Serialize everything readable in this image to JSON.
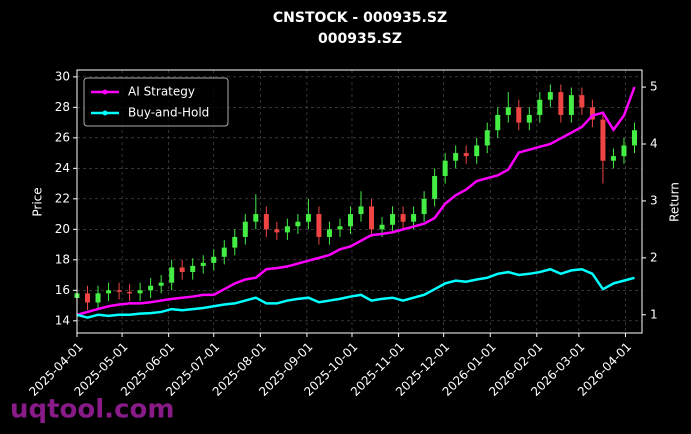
{
  "chart_data": {
    "type": "candlestick",
    "title": "CNSTOCK - 000935.SZ",
    "subtitle": "000935.SZ",
    "y_label": "Price",
    "y2_label": "Return",
    "watermark": "uqtool.com",
    "x": [
      "2025-04-01",
      "2025-04-08",
      "2025-04-15",
      "2025-04-22",
      "2025-04-29",
      "2025-05-06",
      "2025-05-13",
      "2025-05-20",
      "2025-05-27",
      "2025-06-03",
      "2025-06-10",
      "2025-06-17",
      "2025-06-24",
      "2025-07-01",
      "2025-07-08",
      "2025-07-15",
      "2025-07-22",
      "2025-07-29",
      "2025-08-05",
      "2025-08-12",
      "2025-08-19",
      "2025-08-26",
      "2025-09-02",
      "2025-09-09",
      "2025-09-16",
      "2025-09-23",
      "2025-09-30",
      "2025-10-07",
      "2025-10-14",
      "2025-10-21",
      "2025-10-28",
      "2025-11-04",
      "2025-11-11",
      "2025-11-18",
      "2025-11-25",
      "2025-12-02",
      "2025-12-09",
      "2025-12-16",
      "2025-12-23",
      "2025-12-30",
      "2026-01-06",
      "2026-01-13",
      "2026-01-20",
      "2026-01-27",
      "2026-02-03",
      "2026-02-10",
      "2026-02-17",
      "2026-02-24",
      "2026-03-03",
      "2026-03-10",
      "2026-03-17",
      "2026-03-24",
      "2026-03-31",
      "2026-04-07"
    ],
    "open": [
      15.5,
      15.8,
      15.2,
      15.8,
      16.0,
      15.9,
      15.8,
      16.0,
      16.3,
      16.5,
      17.5,
      17.2,
      17.6,
      17.8,
      18.2,
      18.8,
      19.5,
      20.5,
      21.0,
      20.0,
      19.8,
      20.2,
      20.5,
      21.0,
      19.5,
      20.0,
      20.2,
      21.0,
      21.5,
      20.0,
      20.3,
      21.0,
      20.5,
      21.0,
      22.0,
      23.5,
      24.5,
      25.0,
      24.8,
      25.5,
      26.5,
      27.5,
      28.0,
      27.0,
      27.5,
      28.5,
      29.0,
      27.5,
      28.8,
      28.0,
      27.2,
      24.5,
      24.8,
      25.5
    ],
    "high": [
      16.3,
      16.3,
      16.3,
      16.5,
      16.5,
      16.4,
      16.5,
      16.8,
      17.0,
      18.0,
      18.0,
      18.1,
      18.3,
      18.7,
      19.3,
      20.0,
      21.0,
      22.3,
      21.5,
      20.5,
      20.7,
      21.0,
      22.0,
      21.5,
      20.5,
      20.7,
      21.5,
      22.5,
      22.0,
      20.8,
      21.5,
      21.5,
      21.5,
      22.5,
      24.0,
      25.0,
      25.5,
      25.5,
      26.0,
      27.0,
      28.0,
      29.0,
      28.5,
      28.0,
      29.0,
      29.5,
      29.5,
      29.3,
      29.3,
      28.5,
      27.7,
      25.3,
      26.0,
      27.0
    ],
    "low": [
      14.8,
      14.7,
      14.7,
      15.3,
      15.4,
      15.3,
      15.3,
      15.5,
      15.8,
      16.0,
      16.7,
      16.7,
      17.1,
      17.3,
      17.7,
      18.3,
      19.0,
      20.0,
      19.5,
      19.3,
      19.3,
      19.7,
      20.0,
      19.0,
      19.0,
      19.5,
      19.7,
      20.5,
      19.5,
      19.5,
      19.8,
      20.0,
      20.0,
      20.5,
      21.5,
      23.0,
      24.0,
      24.3,
      24.3,
      25.0,
      26.0,
      27.0,
      26.5,
      26.5,
      27.0,
      28.0,
      27.0,
      27.0,
      27.5,
      26.7,
      23.0,
      24.0,
      24.3,
      25.0
    ],
    "close": [
      15.8,
      15.2,
      15.8,
      16.0,
      15.9,
      15.8,
      16.0,
      16.3,
      16.5,
      17.5,
      17.2,
      17.6,
      17.8,
      18.2,
      18.8,
      19.5,
      20.5,
      21.0,
      20.0,
      19.8,
      20.2,
      20.5,
      21.0,
      19.5,
      20.0,
      20.2,
      21.0,
      21.5,
      20.0,
      20.3,
      21.0,
      20.5,
      21.0,
      22.0,
      23.5,
      24.5,
      25.0,
      24.8,
      25.5,
      26.5,
      27.5,
      28.0,
      27.0,
      27.5,
      28.5,
      29.0,
      27.5,
      28.8,
      28.0,
      27.2,
      24.5,
      24.8,
      25.5,
      26.5
    ],
    "up_color": "#44ee44",
    "down_color": "#ee4444",
    "series": [
      {
        "name": "AI Strategy",
        "color": "#ff00ff",
        "axis": "y2",
        "values": [
          1.0,
          1.05,
          1.1,
          1.15,
          1.18,
          1.2,
          1.2,
          1.22,
          1.25,
          1.28,
          1.3,
          1.32,
          1.35,
          1.35,
          1.45,
          1.55,
          1.62,
          1.65,
          1.8,
          1.82,
          1.85,
          1.9,
          1.95,
          2.0,
          2.05,
          2.15,
          2.2,
          2.3,
          2.4,
          2.42,
          2.45,
          2.5,
          2.55,
          2.6,
          2.7,
          2.95,
          3.1,
          3.2,
          3.35,
          3.4,
          3.45,
          3.55,
          3.85,
          3.9,
          3.95,
          4.0,
          4.1,
          4.2,
          4.3,
          4.5,
          4.55,
          4.25,
          4.5,
          5.0
        ]
      },
      {
        "name": "Buy-and-Hold",
        "color": "#00ffff",
        "axis": "y2",
        "values": [
          1.0,
          0.95,
          1.0,
          0.98,
          1.0,
          1.0,
          1.02,
          1.03,
          1.05,
          1.1,
          1.08,
          1.1,
          1.12,
          1.15,
          1.18,
          1.2,
          1.25,
          1.3,
          1.2,
          1.2,
          1.25,
          1.28,
          1.3,
          1.22,
          1.25,
          1.28,
          1.32,
          1.35,
          1.25,
          1.28,
          1.3,
          1.25,
          1.3,
          1.35,
          1.45,
          1.55,
          1.6,
          1.58,
          1.62,
          1.65,
          1.72,
          1.75,
          1.7,
          1.72,
          1.75,
          1.8,
          1.72,
          1.78,
          1.8,
          1.72,
          1.45,
          1.55,
          1.6,
          1.65
        ]
      }
    ],
    "xlim": [
      "2025-04-01",
      "2026-04-12"
    ],
    "xticks": [
      "2025-04-01",
      "2025-05-01",
      "2025-06-01",
      "2025-07-01",
      "2025-08-01",
      "2025-09-01",
      "2025-10-01",
      "2025-11-01",
      "2025-12-01",
      "2026-01-01",
      "2026-02-01",
      "2026-03-01",
      "2026-04-01"
    ],
    "ylim": [
      13.2,
      30.45
    ],
    "yticks": [
      14,
      16,
      18,
      20,
      22,
      24,
      26,
      28,
      30
    ],
    "y2lim": [
      0.68,
      5.3
    ],
    "y2ticks": [
      1,
      2,
      3,
      4,
      5
    ],
    "grid": true,
    "legend": "upper left"
  }
}
